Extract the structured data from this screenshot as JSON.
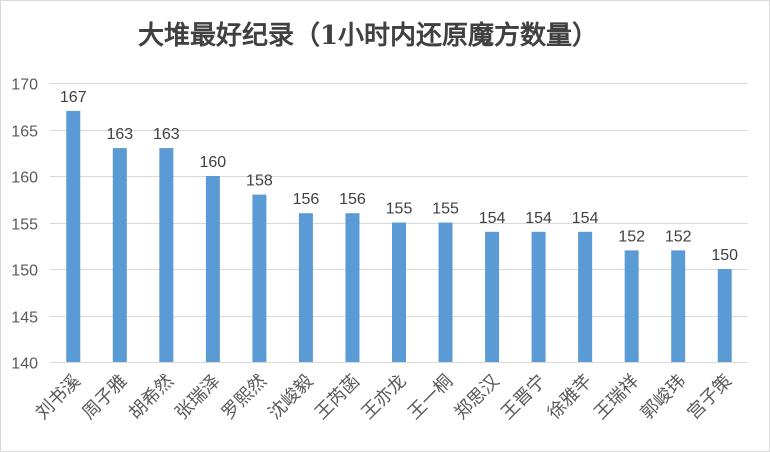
{
  "chart_data": {
    "type": "bar",
    "title": "大堆最好纪录（1小时内还原魔方数量）",
    "xlabel": "",
    "ylabel": "",
    "categories": [
      "刘书溪",
      "周子雅",
      "胡希然",
      "张瑞泽",
      "罗熙然",
      "沈峻毅",
      "王芮菡",
      "王亦龙",
      "王一桐",
      "郑思汉",
      "王晋宁",
      "徐雅芊",
      "王瑞祥",
      "郭峻玮",
      "宫子策"
    ],
    "values": [
      167,
      163,
      163,
      160,
      158,
      156,
      156,
      155,
      155,
      154,
      154,
      154,
      152,
      152,
      150
    ],
    "ylim": [
      140,
      170
    ],
    "yticks": [
      140,
      145,
      150,
      155,
      160,
      165,
      170
    ],
    "grid": true,
    "legend": "none",
    "colors": {
      "bar": "#5b9bd5",
      "grid": "#d9d9d9",
      "border": "#d9d9d9"
    }
  }
}
